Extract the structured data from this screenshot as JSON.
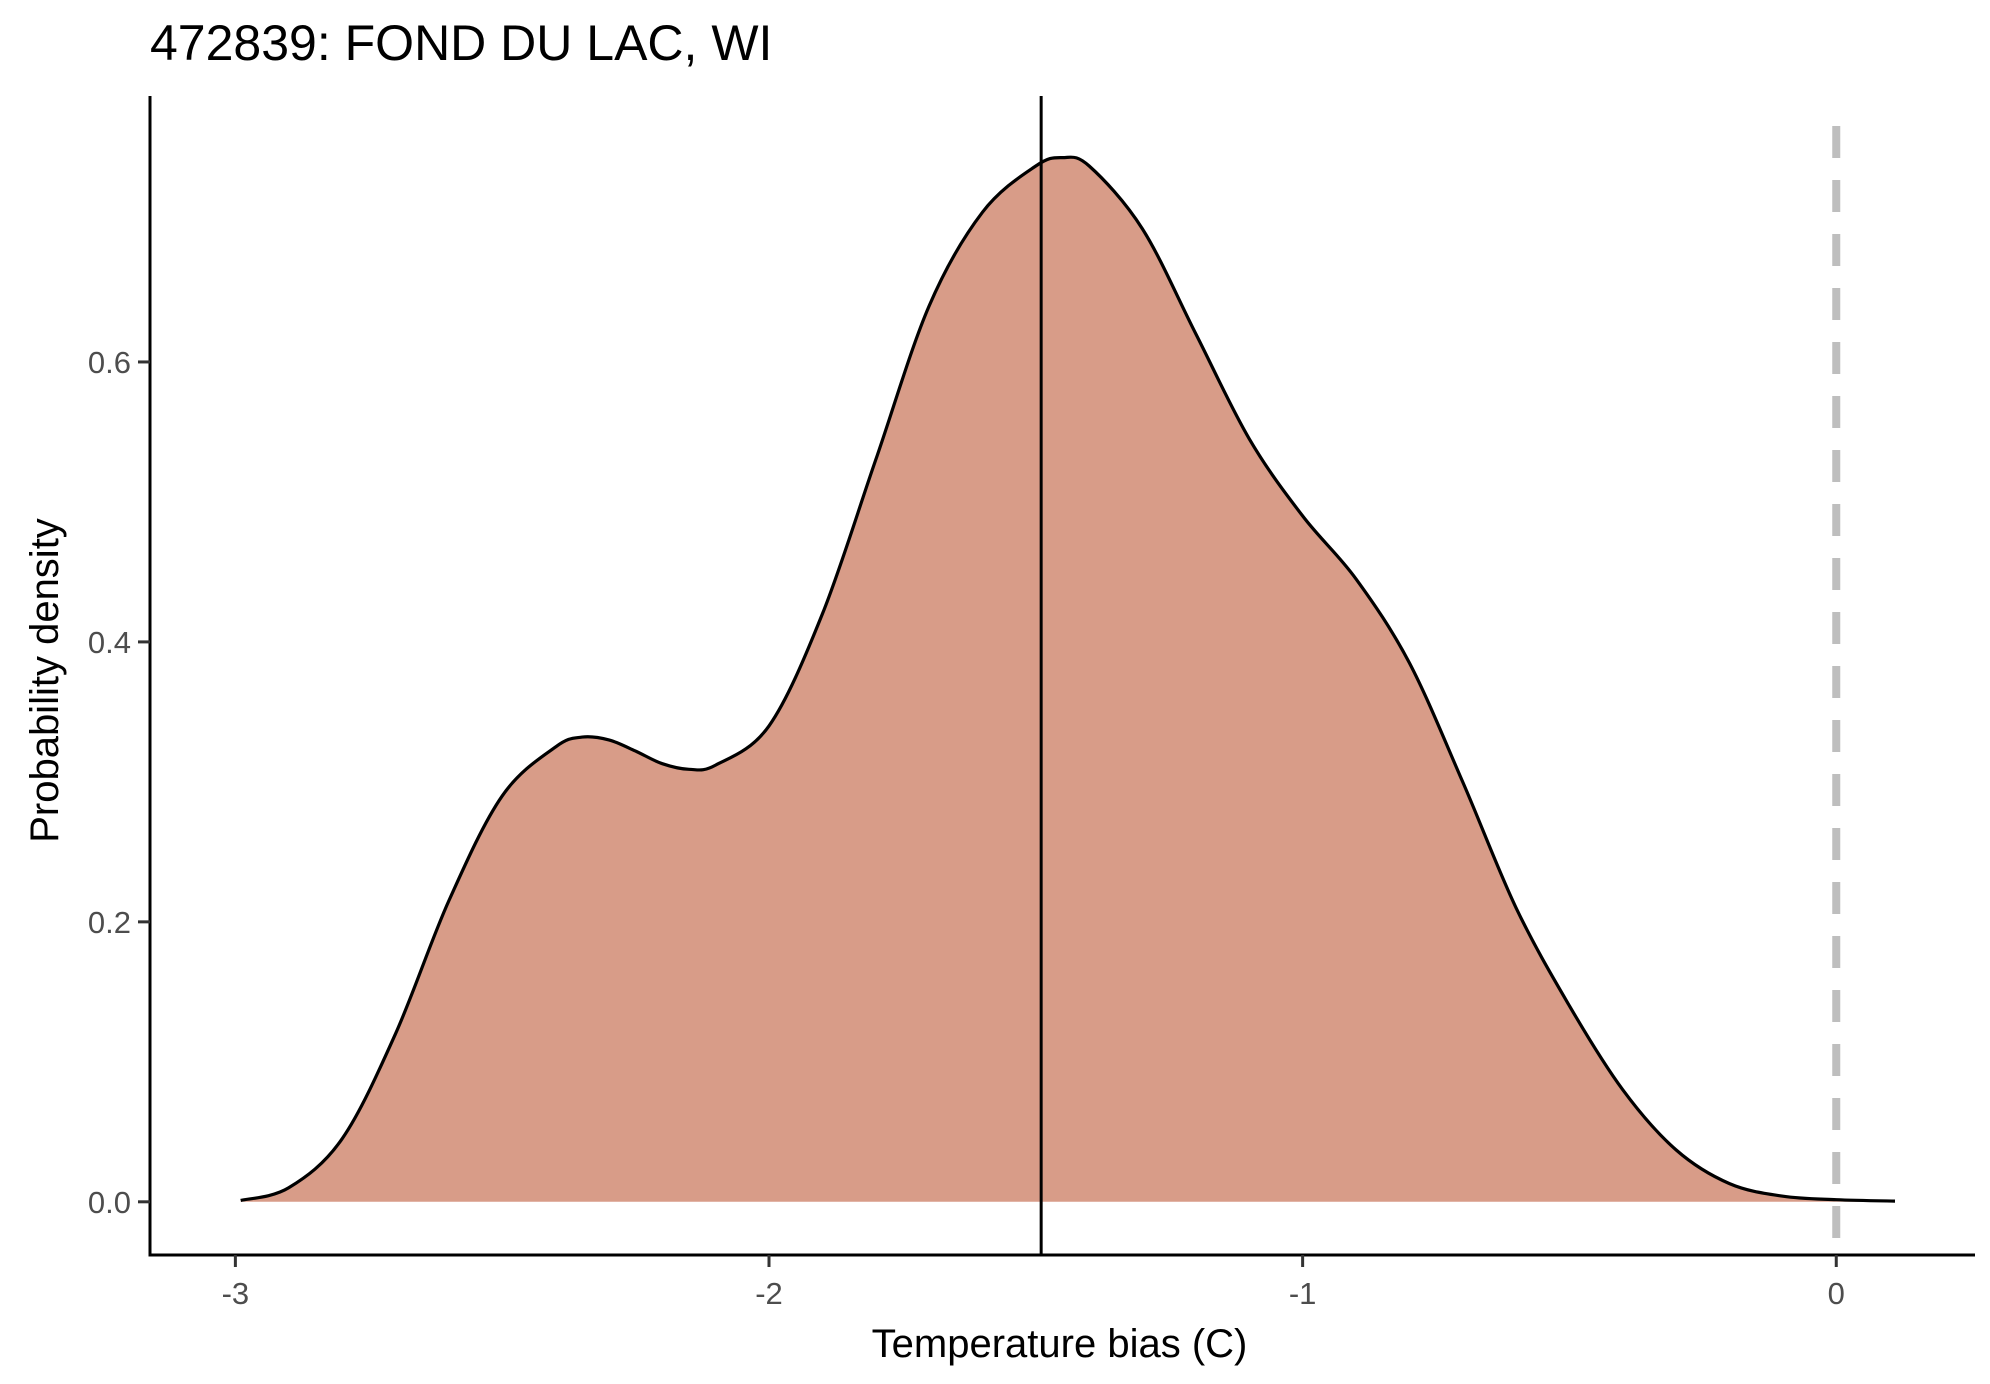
{
  "chart_data": {
    "type": "area",
    "title": "472839: FOND DU LAC, WI",
    "xlabel": "Temperature bias (C)",
    "ylabel": "Probability density",
    "xlim": [
      -3.16,
      0.26
    ],
    "ylim": [
      -0.038,
      0.79
    ],
    "x_ticks": [
      {
        "value": -3,
        "label": "-3"
      },
      {
        "value": -2,
        "label": "-2"
      },
      {
        "value": -1,
        "label": "-1"
      },
      {
        "value": 0,
        "label": "0"
      }
    ],
    "y_ticks": [
      {
        "value": 0.0,
        "label": "0.0"
      },
      {
        "value": 0.2,
        "label": "0.2"
      },
      {
        "value": 0.4,
        "label": "0.4"
      },
      {
        "value": 0.6,
        "label": "0.6"
      }
    ],
    "grid": false,
    "fill_color": "#d89c88",
    "line_color": "#000000",
    "reference_lines": [
      {
        "name": "mean",
        "x": -1.49,
        "style": "solid",
        "color": "#000000"
      },
      {
        "name": "zero",
        "x": 0.0,
        "style": "dashed",
        "color": "#bebebe"
      }
    ],
    "series": [
      {
        "x": [
          -2.99,
          -2.9,
          -2.8,
          -2.7,
          -2.6,
          -2.5,
          -2.4,
          -2.35,
          -2.3,
          -2.25,
          -2.2,
          -2.15,
          -2.1,
          -2.0,
          -1.9,
          -1.8,
          -1.7,
          -1.6,
          -1.5,
          -1.45,
          -1.4,
          -1.3,
          -1.2,
          -1.1,
          -1.0,
          -0.9,
          -0.8,
          -0.7,
          -0.6,
          -0.5,
          -0.4,
          -0.3,
          -0.2,
          -0.1,
          0.0,
          0.11
        ],
        "y": [
          0.001,
          0.01,
          0.045,
          0.12,
          0.215,
          0.29,
          0.325,
          0.332,
          0.33,
          0.322,
          0.313,
          0.309,
          0.312,
          0.34,
          0.42,
          0.53,
          0.64,
          0.707,
          0.74,
          0.746,
          0.74,
          0.695,
          0.62,
          0.545,
          0.49,
          0.445,
          0.385,
          0.3,
          0.21,
          0.14,
          0.08,
          0.037,
          0.013,
          0.004,
          0.0015,
          0.0005
        ]
      }
    ]
  }
}
